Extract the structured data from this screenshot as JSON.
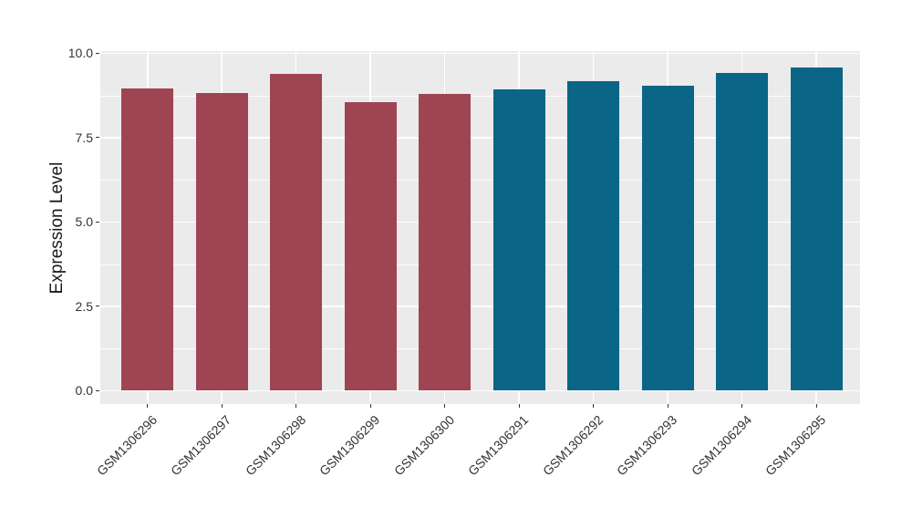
{
  "figure": {
    "background_color": "#FFFFFF"
  },
  "chart_data": {
    "type": "bar",
    "title": "",
    "xlabel": "",
    "ylabel": "Expression Level",
    "categories": [
      "GSM1306296",
      "GSM1306297",
      "GSM1306298",
      "GSM1306299",
      "GSM1306300",
      "GSM1306291",
      "GSM1306292",
      "GSM1306293",
      "GSM1306294",
      "GSM1306295"
    ],
    "values": [
      8.95,
      8.83,
      9.39,
      8.54,
      8.8,
      8.92,
      9.17,
      9.03,
      9.42,
      9.58
    ],
    "bar_colors": [
      "#9E4453",
      "#9E4453",
      "#9E4453",
      "#9E4453",
      "#9E4453",
      "#0A6586",
      "#0A6586",
      "#0A6586",
      "#0A6586",
      "#0A6586"
    ],
    "ytick_labels": [
      "0.0",
      "2.5",
      "5.0",
      "7.5",
      "10.0"
    ],
    "ytick_values": [
      0,
      2.5,
      5,
      7.5,
      10
    ],
    "minor_gridline_values": [
      1.25,
      3.75,
      6.25,
      8.75
    ],
    "ylim": [
      0,
      10
    ],
    "x_label_rotation_deg": 45,
    "legend": "none",
    "grid": "white major + minor horizontal lines, white major vertical lines",
    "panel_background": "#EBEBEB",
    "gridline_color": "#FFFFFF",
    "axis_text_color": "#333333",
    "axis_title_color": "#1A1A1A"
  }
}
